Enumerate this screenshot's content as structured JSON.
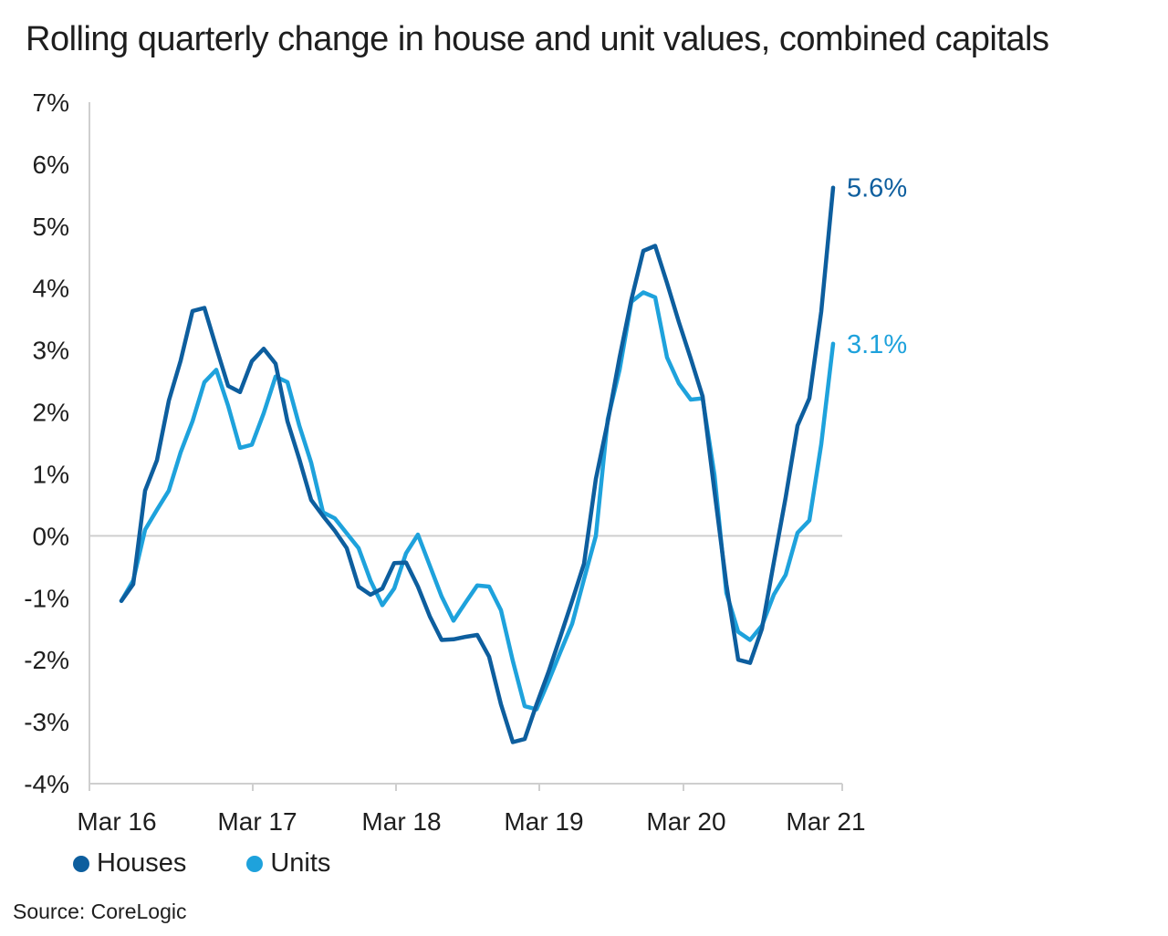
{
  "chart_data": {
    "type": "line",
    "title": "Rolling quarterly change in house and unit values, combined capitals",
    "ylim": [
      -4,
      7
    ],
    "y_ticks": [
      "7%",
      "6%",
      "5%",
      "4%",
      "3%",
      "2%",
      "1%",
      "0%",
      "-1%",
      "-2%",
      "-3%",
      "-4%"
    ],
    "x_ticks": [
      "Mar 16",
      "Mar 17",
      "Mar 18",
      "Mar 19",
      "Mar 20",
      "Mar 21"
    ],
    "grid": false,
    "zero_line": true,
    "series": [
      {
        "name": "Houses",
        "color": "#0d5e9e",
        "end_label": "5.6%",
        "values": [
          -1.05,
          -0.78,
          0.73,
          1.22,
          2.18,
          2.83,
          3.63,
          3.68,
          3.04,
          2.42,
          2.32,
          2.82,
          3.02,
          2.78,
          1.85,
          1.24,
          0.58,
          0.32,
          0.08,
          -0.2,
          -0.82,
          -0.95,
          -0.85,
          -0.44,
          -0.43,
          -0.82,
          -1.3,
          -1.68,
          -1.67,
          -1.63,
          -1.6,
          -1.95,
          -2.72,
          -3.33,
          -3.28,
          -2.72,
          -2.2,
          -1.63,
          -1.05,
          -0.45,
          0.92,
          1.84,
          2.88,
          3.82,
          4.6,
          4.68,
          4.08,
          3.45,
          2.86,
          2.25,
          0.72,
          -0.78,
          -2.0,
          -2.05,
          -1.5,
          -0.43,
          0.62,
          1.78,
          2.22,
          3.62,
          5.62
        ]
      },
      {
        "name": "Units",
        "color": "#1ea2dc",
        "end_label": "3.1%",
        "values": [
          -1.05,
          -0.72,
          0.1,
          0.42,
          0.73,
          1.35,
          1.85,
          2.48,
          2.68,
          2.1,
          1.42,
          1.47,
          1.98,
          2.57,
          2.48,
          1.78,
          1.18,
          0.38,
          0.28,
          0.04,
          -0.2,
          -0.72,
          -1.12,
          -0.85,
          -0.28,
          0.02,
          -0.48,
          -0.98,
          -1.37,
          -1.08,
          -0.8,
          -0.82,
          -1.2,
          -2.02,
          -2.75,
          -2.8,
          -2.35,
          -1.88,
          -1.42,
          -0.7,
          0.0,
          1.88,
          2.68,
          3.78,
          3.93,
          3.85,
          2.88,
          2.46,
          2.2,
          2.22,
          0.98,
          -0.92,
          -1.55,
          -1.68,
          -1.45,
          -0.95,
          -0.63,
          0.05,
          0.25,
          1.48,
          3.1
        ]
      }
    ]
  },
  "legend": {
    "houses": "Houses",
    "units": "Units"
  },
  "source": "Source: CoreLogic"
}
